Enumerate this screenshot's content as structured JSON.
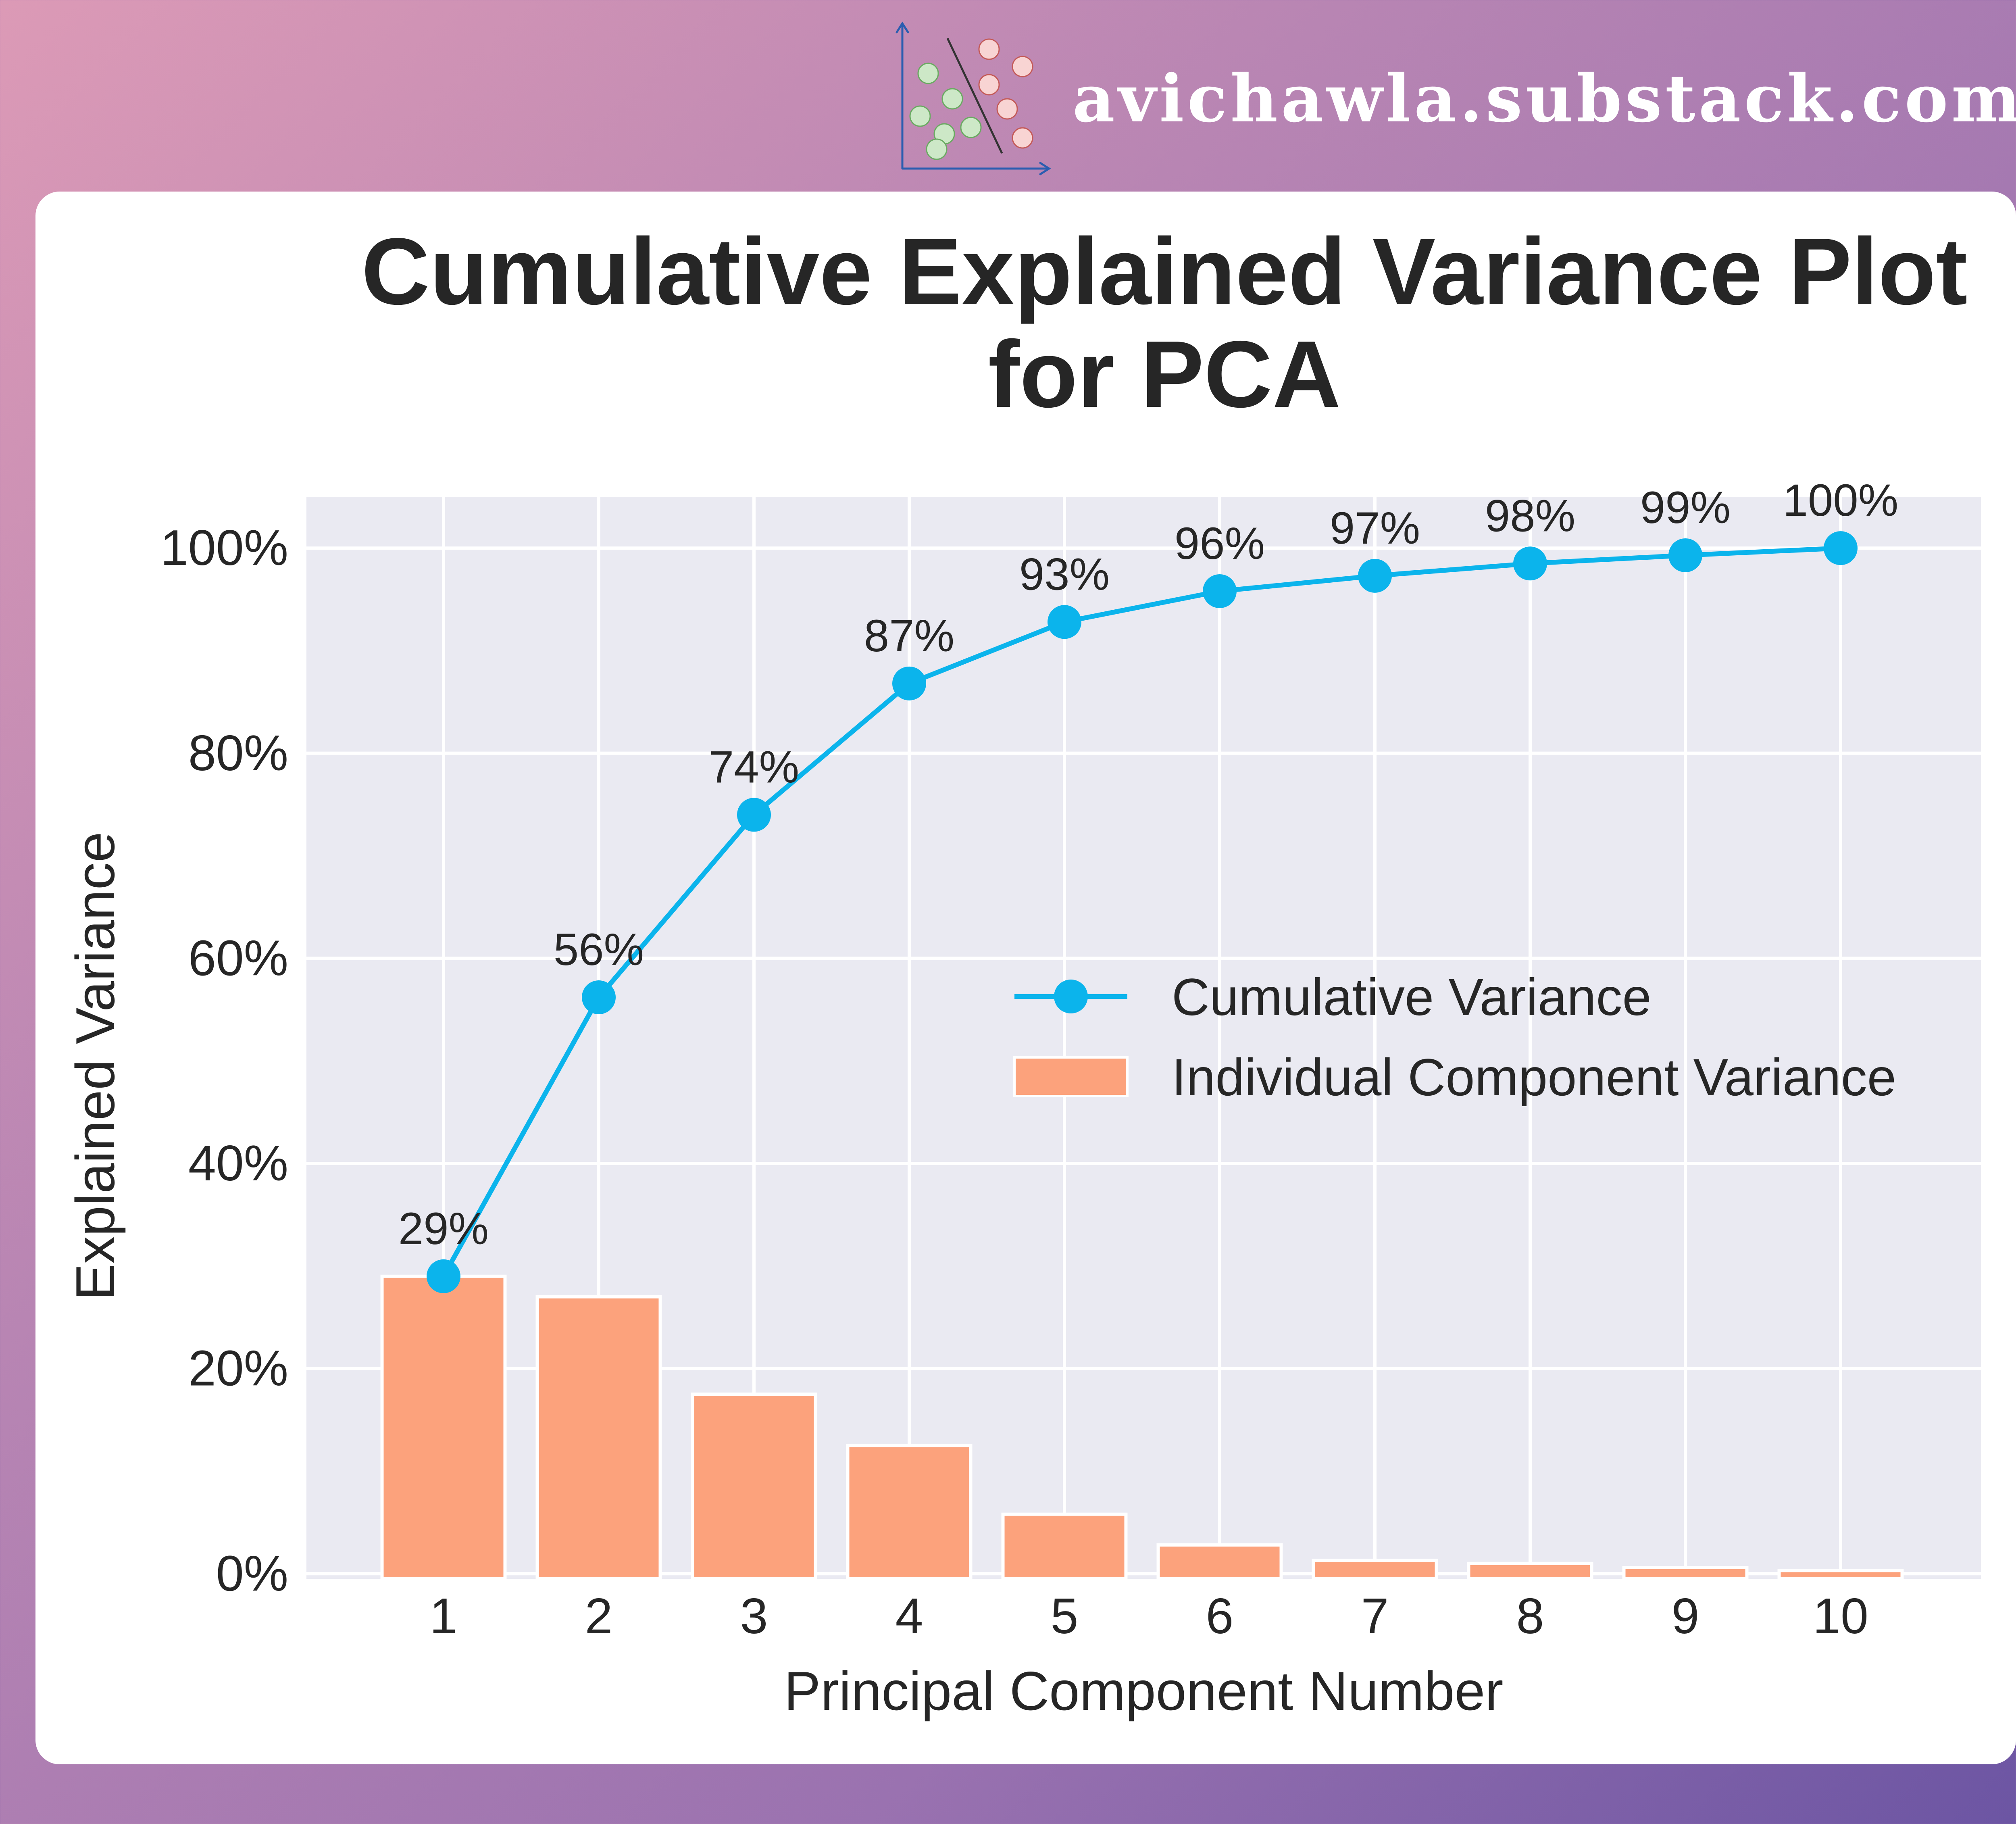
{
  "brand": {
    "site": "avichawla.substack.com",
    "logo_icon": "scatter-classification-icon"
  },
  "colors": {
    "line": "#0bb4ec",
    "bar": "#fca27c",
    "plot_bg": "#eaeaf2",
    "grid": "#ffffff",
    "text": "#262626"
  },
  "chart_data": {
    "type": "bar",
    "title": [
      "Cumulative Explained Variance Plot",
      "for PCA"
    ],
    "xlabel": "Principal Component Number",
    "ylabel": "Explained Variance",
    "categories": [
      "1",
      "2",
      "3",
      "4",
      "5",
      "6",
      "7",
      "8",
      "9",
      "10"
    ],
    "ylim": [
      -0.005,
      1.05
    ],
    "yticks": [
      0,
      0.2,
      0.4,
      0.6,
      0.8,
      1.0
    ],
    "ytick_labels": [
      "0%",
      "20%",
      "40%",
      "60%",
      "80%",
      "100%"
    ],
    "grid": true,
    "legend_position": "center-right",
    "series": [
      {
        "name": "Cumulative Variance",
        "type": "line",
        "values": [
          0.29,
          0.562,
          0.74,
          0.868,
          0.928,
          0.958,
          0.973,
          0.985,
          0.993,
          1.0
        ],
        "labels": [
          "29%",
          "56%",
          "74%",
          "87%",
          "93%",
          "96%",
          "97%",
          "98%",
          "99%",
          "100%"
        ]
      },
      {
        "name": "Individual Component Variance",
        "type": "bar",
        "values": [
          0.29,
          0.27,
          0.175,
          0.125,
          0.058,
          0.028,
          0.013,
          0.01,
          0.006,
          0.003
        ]
      }
    ]
  }
}
